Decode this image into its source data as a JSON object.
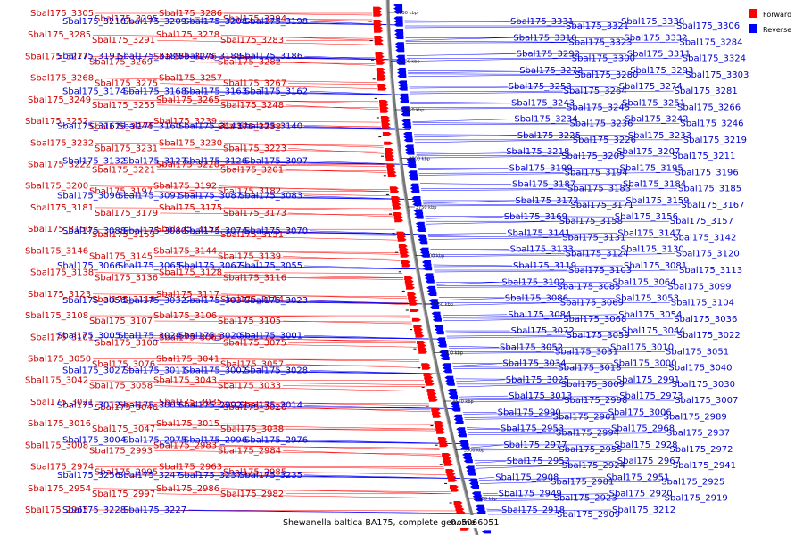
{
  "title": "Shewanella baltica BA175, complete genome",
  "scale_label": "0..5066051",
  "legend": [
    {
      "label": "Forward",
      "color": "#ff0000"
    },
    {
      "label": "Reverse",
      "color": "#0000ff"
    }
  ],
  "colors": {
    "forward": "#ff0000",
    "reverse": "#0000ff",
    "forward_text": "#cc0000",
    "reverse_text": "#0000cc",
    "backbone": "#777777"
  },
  "ticks": [
    "3950 kbp",
    "3900 kbp",
    "3850 kbp",
    "3800 kbp",
    "3750 kbp",
    "3700 kbp",
    "3650 kbp",
    "3600 kbp",
    "3550 kbp",
    "3500 kbp",
    "3450 kbp"
  ],
  "forward_genes": [
    "Sbal175_3305",
    "Sbal175_3295",
    "Sbal175_3286",
    "Sbal175_3294",
    "Sbal175_3285",
    "Sbal175_3291",
    "Sbal175_3278",
    "Sbal175_3283",
    "Sbal175_3277",
    "Sbal175_3269",
    "Sbal175_3276",
    "Sbal175_3282",
    "Sbal175_3268",
    "Sbal175_3275",
    "Sbal175_3257",
    "Sbal175_3267",
    "Sbal175_3249",
    "Sbal175_3255",
    "Sbal175_3265",
    "Sbal175_3248",
    "Sbal175_3252",
    "Sbal175_3244",
    "Sbal175_3239",
    "Sbal175_3238",
    "Sbal175_3232",
    "Sbal175_3231",
    "Sbal175_3230",
    "Sbal175_3223",
    "Sbal175_3222",
    "Sbal175_3221",
    "Sbal175_3220",
    "Sbal175_3201",
    "Sbal175_3200",
    "Sbal175_3197",
    "Sbal175_3192",
    "Sbal175_3182",
    "Sbal175_3181",
    "Sbal175_3179",
    "Sbal175_3175",
    "Sbal175_3173",
    "Sbal175_3150",
    "Sbal175_3153",
    "Sbal175_3152",
    "Sbal175_3151",
    "Sbal175_3146",
    "Sbal175_3145",
    "Sbal175_3144",
    "Sbal175_3139",
    "Sbal175_3138",
    "Sbal175_3136",
    "Sbal175_3128",
    "Sbal175_3116",
    "Sbal175_3123",
    "Sbal175_3118",
    "Sbal175_3117",
    "Sbal175_3114",
    "Sbal175_3108",
    "Sbal175_3107",
    "Sbal175_3106",
    "Sbal175_3105",
    "Sbal175_3101",
    "Sbal175_3100",
    "Sbal175_3063",
    "Sbal175_3075",
    "Sbal175_3050",
    "Sbal175_3076",
    "Sbal175_3041",
    "Sbal175_3057",
    "Sbal175_3042",
    "Sbal175_3058",
    "Sbal175_3043",
    "Sbal175_3033",
    "Sbal175_3021",
    "Sbal175_3046",
    "Sbal175_3035",
    "Sbal175_3026",
    "Sbal175_3016",
    "Sbal175_3047",
    "Sbal175_3015",
    "Sbal175_3038",
    "Sbal175_3008",
    "Sbal175_2993",
    "Sbal175_2983",
    "Sbal175_2984",
    "Sbal175_2974",
    "Sbal175_2995",
    "Sbal175_2963",
    "Sbal175_2985",
    "Sbal175_2954",
    "Sbal175_2997",
    "Sbal175_2986",
    "Sbal175_2982",
    "Sbal175_2965"
  ],
  "reverse_genes": [
    "Sbal175_3331",
    "Sbal175_3321",
    "Sbal175_3330",
    "Sbal175_3306",
    "Sbal175_3310",
    "Sbal175_3323",
    "Sbal175_3332",
    "Sbal175_3284",
    "Sbal175_3292",
    "Sbal175_3300",
    "Sbal175_3311",
    "Sbal175_3324",
    "Sbal175_3272",
    "Sbal175_3280",
    "Sbal175_3293",
    "Sbal175_3303",
    "Sbal175_3253",
    "Sbal175_3264",
    "Sbal175_3274",
    "Sbal175_3281",
    "Sbal175_3243",
    "Sbal175_3245",
    "Sbal175_3251",
    "Sbal175_3266",
    "Sbal175_3234",
    "Sbal175_3236",
    "Sbal175_3242",
    "Sbal175_3246",
    "Sbal175_3225",
    "Sbal175_3226",
    "Sbal175_3233",
    "Sbal175_3219",
    "Sbal175_3218",
    "Sbal175_3205",
    "Sbal175_3207",
    "Sbal175_3211",
    "Sbal175_3199",
    "Sbal175_3194",
    "Sbal175_3195",
    "Sbal175_3196",
    "Sbal175_3187",
    "Sbal175_3183",
    "Sbal175_3184",
    "Sbal175_3185",
    "Sbal175_3172",
    "Sbal175_3171",
    "Sbal175_3159",
    "Sbal175_3167",
    "Sbal175_3169",
    "Sbal175_3158",
    "Sbal175_3156",
    "Sbal175_3157",
    "Sbal175_3141",
    "Sbal175_3131",
    "Sbal175_3147",
    "Sbal175_3142",
    "Sbal175_3133",
    "Sbal175_3124",
    "Sbal175_3130",
    "Sbal175_3120",
    "Sbal175_3119",
    "Sbal175_3103",
    "Sbal175_3081",
    "Sbal175_3113",
    "Sbal175_3102",
    "Sbal175_3085",
    "Sbal175_3064",
    "Sbal175_3099",
    "Sbal175_3086",
    "Sbal175_3069",
    "Sbal175_3053",
    "Sbal175_3104",
    "Sbal175_3084",
    "Sbal175_3068",
    "Sbal175_3054",
    "Sbal175_3036",
    "Sbal175_3072",
    "Sbal175_3059",
    "Sbal175_3044",
    "Sbal175_3022",
    "Sbal175_3052",
    "Sbal175_3031",
    "Sbal175_3010",
    "Sbal175_3051",
    "Sbal175_3034",
    "Sbal175_3018",
    "Sbal175_3000",
    "Sbal175_3040",
    "Sbal175_3025",
    "Sbal175_3009",
    "Sbal175_2991",
    "Sbal175_3030",
    "Sbal175_3013",
    "Sbal175_2998",
    "Sbal175_2973",
    "Sbal175_3007",
    "Sbal175_2990",
    "Sbal175_2961",
    "Sbal175_3006",
    "Sbal175_2989",
    "Sbal175_2953",
    "Sbal175_2994",
    "Sbal175_2968",
    "Sbal175_2937",
    "Sbal175_2977",
    "Sbal175_2955",
    "Sbal175_2928",
    "Sbal175_2972",
    "Sbal175_2952",
    "Sbal175_2924",
    "Sbal175_2967",
    "Sbal175_2941",
    "Sbal175_2908",
    "Sbal175_2981",
    "Sbal175_2951",
    "Sbal175_2925",
    "Sbal175_2949",
    "Sbal175_2923",
    "Sbal175_2920",
    "Sbal175_2919",
    "Sbal175_2918",
    "Sbal175_2909",
    "Sbal175_3212",
    "Sbal175_3210",
    "Sbal175_3209",
    "Sbal175_3208",
    "Sbal175_3198",
    "Sbal175_3191",
    "Sbal175_3189",
    "Sbal175_3188",
    "Sbal175_3186",
    "Sbal175_3174",
    "Sbal175_3168",
    "Sbal175_3163",
    "Sbal175_3162",
    "Sbal175_3161",
    "Sbal175_3160",
    "Sbal175_3143",
    "Sbal175_3140",
    "Sbal175_3132",
    "Sbal175_3127",
    "Sbal175_3126",
    "Sbal175_3097",
    "Sbal175_3096",
    "Sbal175_3091",
    "Sbal175_3087",
    "Sbal175_3083",
    "Sbal175_3088",
    "Sbal175_3080",
    "Sbal175_3074",
    "Sbal175_3070",
    "Sbal175_3066",
    "Sbal175_3065",
    "Sbal175_3067",
    "Sbal175_3055",
    "Sbal175_3056",
    "Sbal175_3032",
    "Sbal175_3037",
    "Sbal175_3023",
    "Sbal175_3005",
    "Sbal175_3024",
    "Sbal175_3020",
    "Sbal175_3001",
    "Sbal175_3027",
    "Sbal175_3011",
    "Sbal175_3002",
    "Sbal175_3028",
    "Sbal175_3012",
    "Sbal175_3003",
    "Sbal175_2992",
    "Sbal175_3014",
    "Sbal175_3004",
    "Sbal175_2975",
    "Sbal175_2996",
    "Sbal175_2976",
    "Sbal175_3256",
    "Sbal175_3247",
    "Sbal175_3237",
    "Sbal175_3235",
    "Sbal175_3228",
    "Sbal175_3227"
  ]
}
